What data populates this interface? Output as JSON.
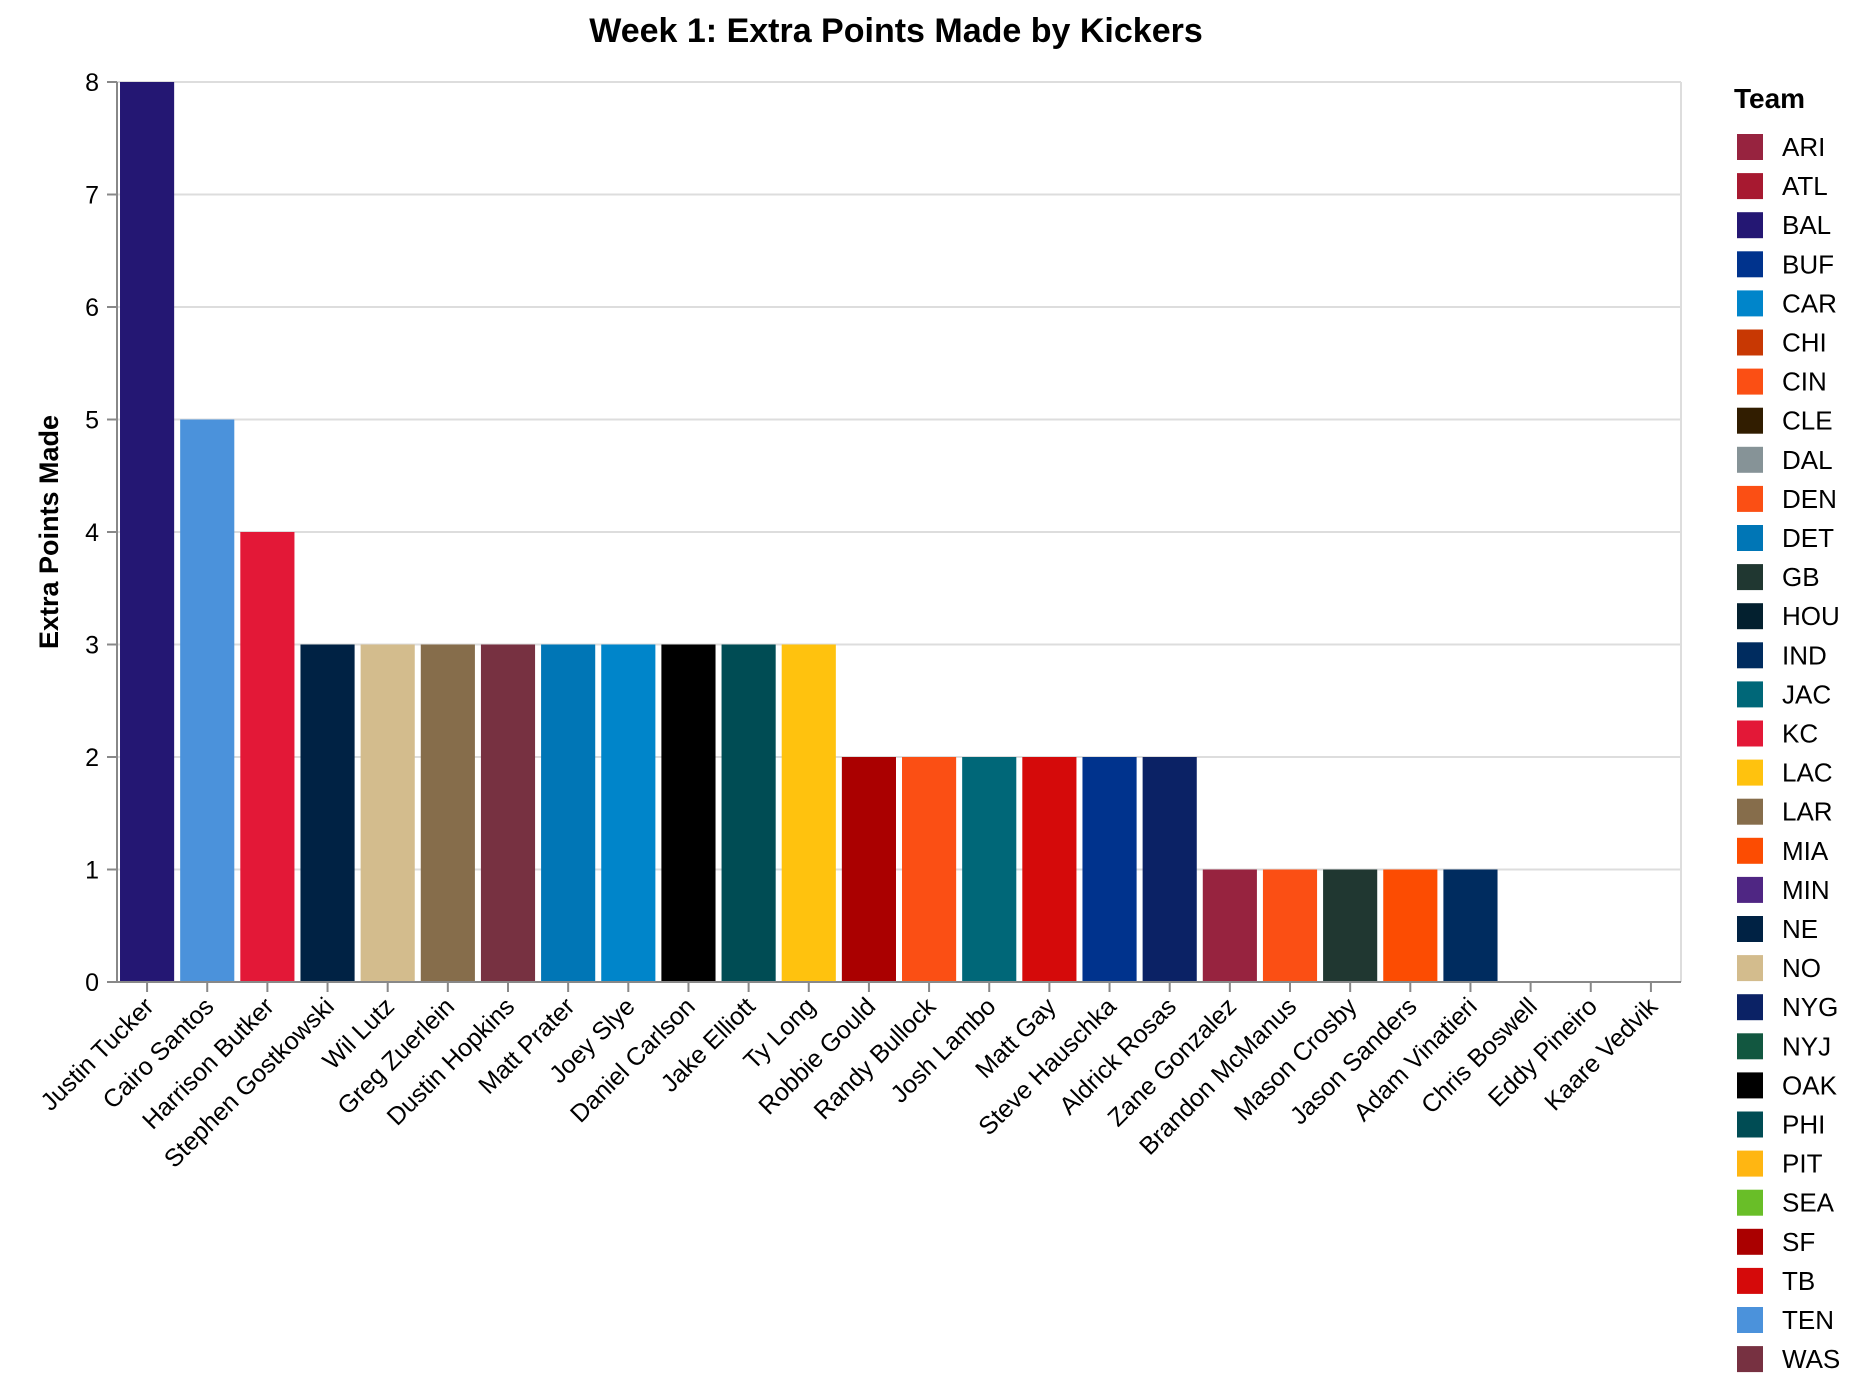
{
  "chart_data": {
    "type": "bar",
    "title": "Week 1: Extra Points Made by Kickers",
    "xlabel": "",
    "ylabel": "Extra Points Made",
    "ylim": [
      0,
      8
    ],
    "yticks": [
      0,
      1,
      2,
      3,
      4,
      5,
      6,
      7,
      8
    ],
    "grid": true,
    "legend_title": "Team",
    "legend_position": "right",
    "categories": [
      "Justin Tucker",
      "Cairo Santos",
      "Harrison Butker",
      "Stephen Gostkowski",
      "Wil Lutz",
      "Greg Zuerlein",
      "Dustin Hopkins",
      "Matt Prater",
      "Joey Slye",
      "Daniel Carlson",
      "Jake Elliott",
      "Ty Long",
      "Robbie Gould",
      "Randy Bullock",
      "Josh Lambo",
      "Matt Gay",
      "Steve Hauschka",
      "Aldrick Rosas",
      "Zane Gonzalez",
      "Brandon McManus",
      "Mason Crosby",
      "Jason Sanders",
      "Adam Vinatieri",
      "Chris Boswell",
      "Eddy Pineiro",
      "Kaare Vedvik"
    ],
    "values": [
      8,
      5,
      4,
      3,
      3,
      3,
      3,
      3,
      3,
      3,
      3,
      3,
      2,
      2,
      2,
      2,
      2,
      2,
      1,
      1,
      1,
      1,
      1,
      0,
      0,
      0
    ],
    "teams": [
      "BAL",
      "TEN",
      "KC",
      "NE",
      "NO",
      "LAR",
      "WAS",
      "DET",
      "CAR",
      "OAK",
      "PHI",
      "LAC",
      "SF",
      "CIN",
      "JAC",
      "TB",
      "BUF",
      "NYG",
      "ARI",
      "DEN",
      "GB",
      "MIA",
      "IND",
      "PIT",
      "CHI",
      "MIN"
    ],
    "legend": [
      {
        "team": "ARI",
        "color": "#97233F"
      },
      {
        "team": "ATL",
        "color": "#A71930"
      },
      {
        "team": "BAL",
        "color": "#241773"
      },
      {
        "team": "BUF",
        "color": "#00338D"
      },
      {
        "team": "CAR",
        "color": "#0085CA"
      },
      {
        "team": "CHI",
        "color": "#C83803"
      },
      {
        "team": "CIN",
        "color": "#FB4F14"
      },
      {
        "team": "CLE",
        "color": "#311D00"
      },
      {
        "team": "DAL",
        "color": "#869397"
      },
      {
        "team": "DEN",
        "color": "#FB4F14"
      },
      {
        "team": "DET",
        "color": "#0076B6"
      },
      {
        "team": "GB",
        "color": "#203731"
      },
      {
        "team": "HOU",
        "color": "#03202F"
      },
      {
        "team": "IND",
        "color": "#002C5F"
      },
      {
        "team": "JAC",
        "color": "#006778"
      },
      {
        "team": "KC",
        "color": "#E31837"
      },
      {
        "team": "LAC",
        "color": "#FFC20E"
      },
      {
        "team": "LAR",
        "color": "#866D4B"
      },
      {
        "team": "MIA",
        "color": "#FC4C02"
      },
      {
        "team": "MIN",
        "color": "#4F2683"
      },
      {
        "team": "NE",
        "color": "#002244"
      },
      {
        "team": "NO",
        "color": "#D3BC8D"
      },
      {
        "team": "NYG",
        "color": "#0B2265"
      },
      {
        "team": "NYJ",
        "color": "#125740"
      },
      {
        "team": "OAK",
        "color": "#000000"
      },
      {
        "team": "PHI",
        "color": "#004C54"
      },
      {
        "team": "PIT",
        "color": "#FFB612"
      },
      {
        "team": "SEA",
        "color": "#69BE28"
      },
      {
        "team": "SF",
        "color": "#AA0000"
      },
      {
        "team": "TB",
        "color": "#D50A0A"
      },
      {
        "team": "TEN",
        "color": "#4B92DB"
      },
      {
        "team": "WAS",
        "color": "#773141"
      }
    ]
  }
}
